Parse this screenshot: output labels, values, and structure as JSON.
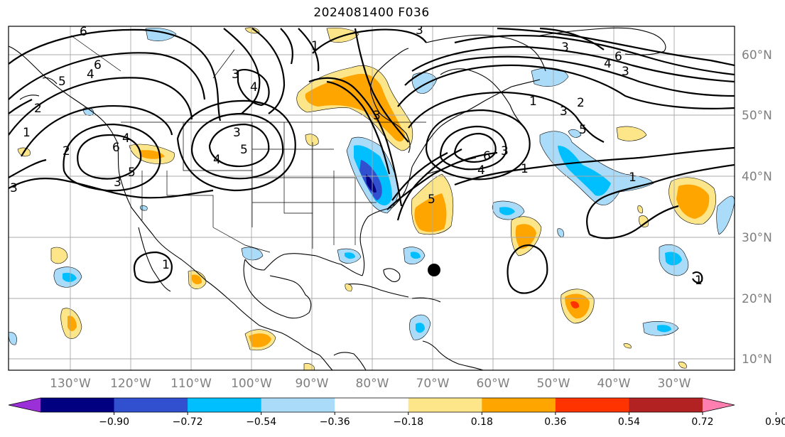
{
  "title": "2024081400 F036",
  "lon_labels": [
    "130°W",
    "120°W",
    "110°W",
    "100°W",
    "90°W",
    "80°W",
    "70°W",
    "60°W",
    "50°W",
    "40°W",
    "30°W"
  ],
  "lat_labels": [
    "60°N",
    "50°N",
    "40°N",
    "30°N",
    "20°N",
    "10°N"
  ],
  "colorbar": {
    "ticks": [
      "−0.90",
      "−0.72",
      "−0.54",
      "−0.36",
      "−0.18",
      "0.18",
      "0.36",
      "0.54",
      "0.72",
      "0.90"
    ],
    "colors": [
      "#9b30d9",
      "#000080",
      "#3050d0",
      "#00bfff",
      "#aadcfa",
      "#ffffff",
      "#fde68a",
      "#ffa500",
      "#ff3300",
      "#b22222",
      "#ff80b0"
    ]
  },
  "contour_labels": {
    "west_4": "4",
    "west_6": "6",
    "west_5": "5",
    "west_3": "3",
    "west_2": "2",
    "west_1": "1",
    "nw_6": "6",
    "nw_5": "5",
    "nw_4": "4",
    "nw_3": "3",
    "nw_2": "2",
    "plains_3": "3",
    "plains_5": "5",
    "plains_4": "4",
    "top_1": "1",
    "top_3": "3",
    "hudson_3": "3",
    "atl_1": "1",
    "atl_2": "2",
    "atl_3": "3",
    "atl_5": "5",
    "atl_4": "4",
    "atl_6": "6",
    "atl_6b": "6",
    "ne_6": "6",
    "ne_4": "4",
    "ne_3": "3",
    "ne_1": "1",
    "mex_1": "1",
    "east_1": "1",
    "east_1b": "1"
  },
  "marker": "black-dot"
}
